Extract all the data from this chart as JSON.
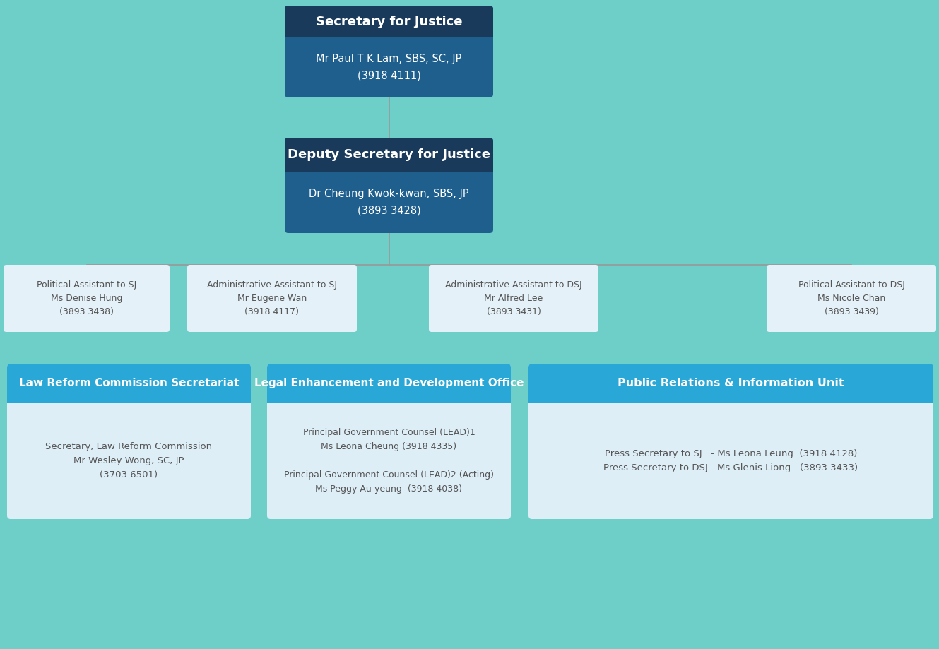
{
  "bg_color": "#6ecec8",
  "dark_navy": "#1a3a5c",
  "medium_blue": "#1e5f8e",
  "steel_blue": "#29a8d8",
  "light_blue_box": "#deeef7",
  "white": "#ffffff",
  "gray_text": "#555555",
  "sj_title": "Secretary for Justice",
  "sj_name": "Mr Paul T K Lam, SBS, SC, JP",
  "sj_phone": "(3918 4111)",
  "dsj_title": "Deputy Secretary for Justice",
  "dsj_name": "Dr Cheung Kwok-kwan, SBS, JP",
  "dsj_phone": "(3893 3428)",
  "aa_sj_line1": "Administrative Assistant to SJ",
  "aa_sj_line2": "Mr Eugene Wan",
  "aa_sj_line3": "(3918 4117)",
  "pa_sj_line1": "Political Assistant to SJ",
  "pa_sj_line2": "Ms Denise Hung",
  "pa_sj_line3": "(3893 3438)",
  "aa_dsj_line1": "Administrative Assistant to DSJ",
  "aa_dsj_line2": "Mr Alfred Lee",
  "aa_dsj_line3": "(3893 3431)",
  "pa_dsj_line1": "Political Assistant to DSJ",
  "pa_dsj_line2": "Ms Nicole Chan",
  "pa_dsj_line3": "(3893 3439)",
  "lrc_header": "Law Reform Commission Secretariat",
  "lrc_line1": "Secretary, Law Reform Commission",
  "lrc_line2": "Mr Wesley Wong, SC, JP",
  "lrc_line3": "(3703 6501)",
  "lead_header": "Legal Enhancement and Development Office",
  "lead_line1": "Principal Government Counsel (LEAD)1",
  "lead_line2": "Ms Leona Cheung (3918 4335)",
  "lead_line3": "Principal Government Counsel (LEAD)2 (Acting)",
  "lead_line4": "Ms Peggy Au-yeung  (3918 4038)",
  "priu_header": "Public Relations & Information Unit",
  "priu_line1": "Press Secretary to SJ   - Ms Leona Leung  (3918 4128)",
  "priu_line2": "Press Secretary to DSJ - Ms Glenis Liong   (3893 3433)"
}
